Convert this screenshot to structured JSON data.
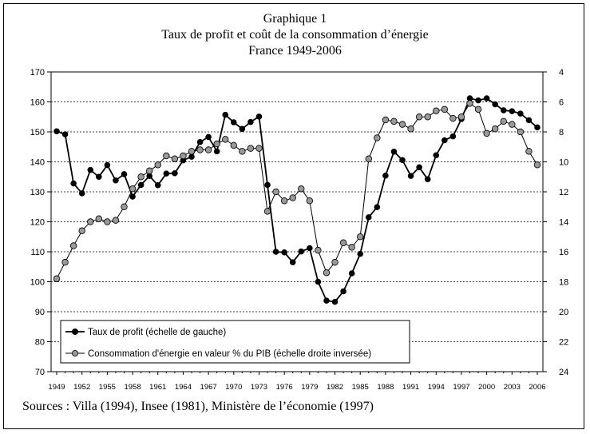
{
  "title": "Graphique 1",
  "subtitle": "Taux de profit et coût de la consommation d’énergie",
  "subtitle2": "France 1949-2006",
  "source": "Sources : Villa (1994), Insee (1981), Ministère de l’économie (1997)",
  "chart_data": {
    "type": "line",
    "title": "Graphique 1",
    "x_ticks": [
      1949,
      1952,
      1955,
      1958,
      1961,
      1964,
      1967,
      1970,
      1973,
      1976,
      1979,
      1982,
      1985,
      1988,
      1991,
      1994,
      1997,
      2000,
      2003,
      2006
    ],
    "x_range": [
      1949,
      2006
    ],
    "y_left": {
      "range": [
        70,
        170
      ],
      "ticks": [
        70,
        80,
        90,
        100,
        110,
        120,
        130,
        140,
        150,
        160,
        170
      ]
    },
    "y_right": {
      "range": [
        4,
        24
      ],
      "inverted": true,
      "ticks": [
        4,
        6,
        8,
        10,
        12,
        14,
        16,
        18,
        20,
        22,
        24
      ]
    },
    "grid": true,
    "legend_placement": "bottom-left",
    "series": [
      {
        "name": "Taux de profit (échelle de gauche)",
        "axis": "left",
        "marker_color": "#000000",
        "x": [
          1949,
          1950,
          1951,
          1952,
          1953,
          1954,
          1955,
          1956,
          1957,
          1958,
          1959,
          1960,
          1961,
          1962,
          1963,
          1964,
          1965,
          1966,
          1967,
          1968,
          1969,
          1970,
          1971,
          1972,
          1973,
          1974,
          1975,
          1976,
          1977,
          1978,
          1979,
          1980,
          1981,
          1982,
          1983,
          1984,
          1985,
          1986,
          1987,
          1988,
          1989,
          1990,
          1991,
          1992,
          1993,
          1994,
          1995,
          1996,
          1997,
          1998,
          1999,
          2000,
          2001,
          2002,
          2003,
          2004,
          2005,
          2006
        ],
        "y": [
          150.2,
          149.2,
          132.8,
          129.5,
          137.3,
          135.0,
          138.9,
          133.8,
          135.9,
          128.4,
          132.3,
          135.3,
          132.2,
          136.1,
          136.2,
          140.5,
          141.7,
          146.6,
          148.3,
          143.5,
          155.7,
          153.2,
          151.0,
          153.3,
          155.1,
          132.3,
          110.0,
          109.8,
          106.5,
          110.1,
          111.2,
          100.0,
          93.7,
          93.3,
          96.8,
          102.8,
          109.3,
          121.5,
          124.9,
          135.4,
          143.4,
          140.6,
          135.3,
          138.2,
          134.2,
          142.2,
          147.2,
          148.5,
          154.3,
          161.2,
          160.5,
          161.2,
          159.2,
          157.2,
          156.9,
          156.1,
          153.9,
          151.5
        ]
      },
      {
        "name": "Consommation d'énergie en valeur % du PIB (échelle droite inversée)",
        "axis": "right",
        "marker_color": "#999999",
        "x": [
          1949,
          1950,
          1951,
          1952,
          1953,
          1954,
          1955,
          1956,
          1957,
          1958,
          1959,
          1960,
          1961,
          1962,
          1963,
          1964,
          1965,
          1966,
          1967,
          1968,
          1969,
          1970,
          1971,
          1972,
          1973,
          1974,
          1975,
          1976,
          1977,
          1978,
          1979,
          1980,
          1981,
          1982,
          1983,
          1984,
          1985,
          1986,
          1987,
          1988,
          1989,
          1990,
          1991,
          1992,
          1993,
          1994,
          1995,
          1996,
          1997,
          1998,
          1999,
          2000,
          2001,
          2002,
          2003,
          2004,
          2005,
          2006
        ],
        "y": [
          17.8,
          16.7,
          15.6,
          14.6,
          14.0,
          13.8,
          14.0,
          13.9,
          13.0,
          11.8,
          11.0,
          10.6,
          10.2,
          9.6,
          9.8,
          9.6,
          9.3,
          9.2,
          9.2,
          8.8,
          8.5,
          8.9,
          9.3,
          9.1,
          9.1,
          13.3,
          12.0,
          12.6,
          12.4,
          11.8,
          12.6,
          15.9,
          17.4,
          16.7,
          15.4,
          15.7,
          15.0,
          9.8,
          8.4,
          7.2,
          7.3,
          7.5,
          7.8,
          7.0,
          7.0,
          6.6,
          6.5,
          7.1,
          7.0,
          6.1,
          6.5,
          8.1,
          7.8,
          7.3,
          7.5,
          8.0,
          9.3,
          10.2
        ]
      }
    ]
  }
}
